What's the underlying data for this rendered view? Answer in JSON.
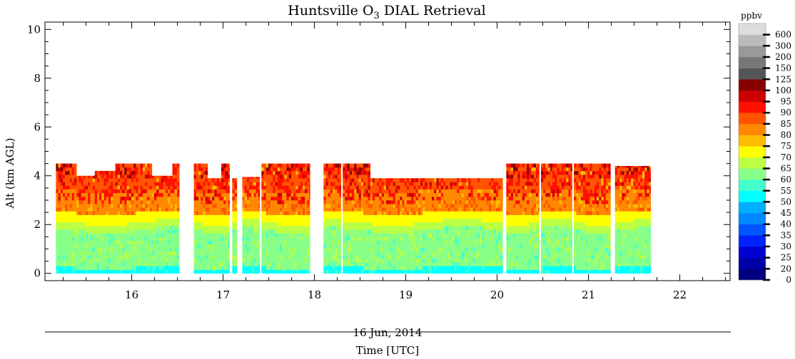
{
  "chart_data": {
    "type": "heatmap",
    "title": "Huntsville O",
    "title_subscript": "3",
    "title_suffix": " DIAL Retrieval",
    "xlabel": "Time [UTC]",
    "date_label": "16 Jun, 2014",
    "ylabel": "Alt (km AGL)",
    "xlim": [
      15.05,
      22.55
    ],
    "ylim": [
      -0.3,
      10.3
    ],
    "xticks": [
      16,
      17,
      18,
      19,
      20,
      21,
      22
    ],
    "xtick_labels": [
      "16",
      "17",
      "18",
      "19",
      "20",
      "21",
      "22"
    ],
    "yticks": [
      0,
      2,
      4,
      6,
      8,
      10
    ],
    "ytick_labels": [
      "0",
      "2",
      "4",
      "6",
      "8",
      "10"
    ],
    "colorbar": {
      "label": "ppbv",
      "levels": [
        0,
        20,
        25,
        30,
        35,
        40,
        45,
        50,
        55,
        60,
        65,
        70,
        75,
        80,
        85,
        90,
        95,
        100,
        125,
        150,
        200,
        300,
        600
      ],
      "tick_labels": [
        "0",
        "20",
        "25",
        "30",
        "35",
        "40",
        "45",
        "50",
        "55",
        "60",
        "65",
        "70",
        "75",
        "80",
        "85",
        "90",
        "95",
        "100",
        "125",
        "150",
        "200",
        "300",
        "600"
      ],
      "colors": [
        "#000080",
        "#0000aa",
        "#0000d0",
        "#0022ff",
        "#0055ff",
        "#0088ff",
        "#00b0ff",
        "#00ffff",
        "#44ffcc",
        "#88ff88",
        "#bbff44",
        "#ffff00",
        "#ffbb00",
        "#ff8800",
        "#ff5500",
        "#ff1100",
        "#cc0000",
        "#880000",
        "#555555",
        "#777777",
        "#999999",
        "#bbbbbb",
        "#dddddd"
      ]
    },
    "data_blocks": [
      {
        "t0": 15.17,
        "t1": 16.52,
        "top": 4.5
      },
      {
        "t0": 16.68,
        "t1": 17.07,
        "top": 4.5
      },
      {
        "t0": 17.1,
        "t1": 17.15,
        "top": 3.85
      },
      {
        "t0": 17.21,
        "t1": 17.4,
        "top": 3.95
      },
      {
        "t0": 17.42,
        "t1": 17.95,
        "top": 4.5
      },
      {
        "t0": 18.1,
        "t1": 18.29,
        "top": 4.5
      },
      {
        "t0": 18.31,
        "t1": 20.06,
        "top": 4.5
      },
      {
        "t0": 20.1,
        "t1": 20.46,
        "top": 4.5
      },
      {
        "t0": 20.48,
        "t1": 20.82,
        "top": 4.5
      },
      {
        "t0": 20.84,
        "t1": 21.24,
        "top": 4.5
      },
      {
        "t0": 21.29,
        "t1": 21.68,
        "top": 4.4
      }
    ],
    "top_notches": [
      {
        "t0": 15.4,
        "t1": 15.6,
        "top": 4.0
      },
      {
        "t0": 15.6,
        "t1": 15.83,
        "top": 4.2
      },
      {
        "t0": 16.22,
        "t1": 16.45,
        "top": 4.0
      },
      {
        "t0": 16.68,
        "t1": 16.82,
        "top": 4.5
      },
      {
        "t0": 16.82,
        "t1": 16.98,
        "top": 3.9
      },
      {
        "t0": 17.07,
        "t1": 17.21,
        "top": 3.9
      },
      {
        "t0": 18.6,
        "t1": 20.06,
        "top": 3.9
      }
    ],
    "profile_layers_ppbv": [
      {
        "alt_range_km": [
          0.0,
          0.25
        ],
        "ppbv": 52
      },
      {
        "alt_range_km": [
          0.25,
          1.2
        ],
        "ppbv": 60
      },
      {
        "alt_range_km": [
          1.2,
          1.8
        ],
        "ppbv": 62
      },
      {
        "alt_range_km": [
          1.8,
          2.1
        ],
        "ppbv": 67
      },
      {
        "alt_range_km": [
          2.1,
          2.5
        ],
        "ppbv": 72
      },
      {
        "alt_range_km": [
          2.5,
          3.4
        ],
        "ppbv": 82
      },
      {
        "alt_range_km": [
          3.4,
          4.5
        ],
        "ppbv": 88
      }
    ]
  }
}
